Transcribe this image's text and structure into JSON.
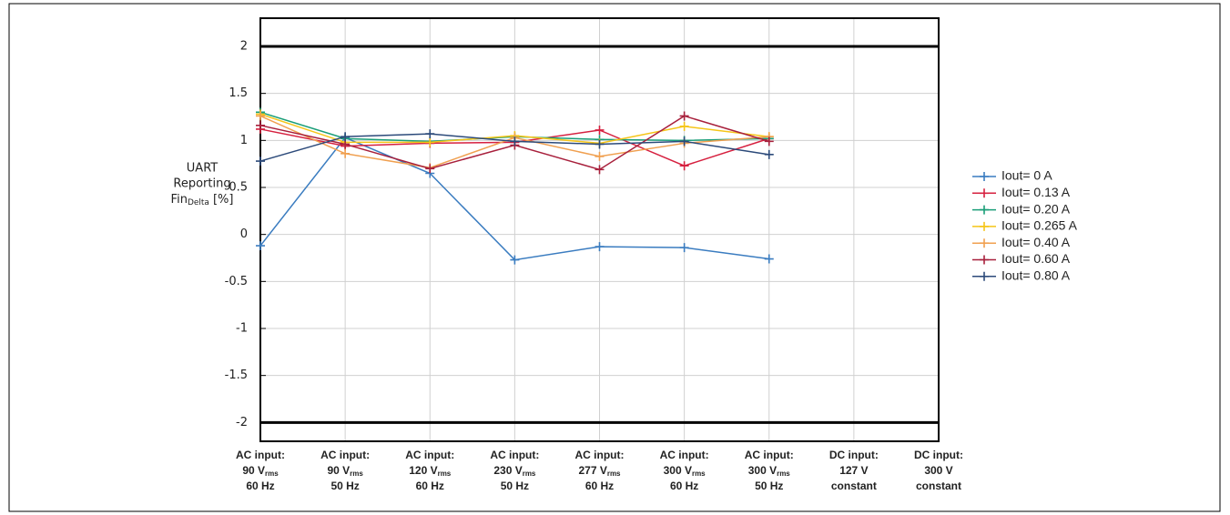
{
  "chart_data": {
    "type": "line",
    "ylabel": {
      "lines": [
        "UART",
        "Reporting"
      ],
      "base": "Fin",
      "subscript": "Delta",
      "suffix": "[%]"
    },
    "categories": [
      {
        "lines": [
          "AC input:",
          "90 V",
          "60 Hz"
        ],
        "subscript": "rms"
      },
      {
        "lines": [
          "AC input:",
          "90 V",
          "50 Hz"
        ],
        "subscript": "rms"
      },
      {
        "lines": [
          "AC input:",
          "120 V",
          "60 Hz"
        ],
        "subscript": "rms"
      },
      {
        "lines": [
          "AC input:",
          "230 V",
          "50 Hz"
        ],
        "subscript": "rms"
      },
      {
        "lines": [
          "AC input:",
          "277 V",
          "60 Hz"
        ],
        "subscript": "rms"
      },
      {
        "lines": [
          "AC input:",
          "300 V",
          "60 Hz"
        ],
        "subscript": "rms"
      },
      {
        "lines": [
          "AC input:",
          "300 V",
          "50 Hz"
        ],
        "subscript": "rms"
      },
      {
        "lines": [
          "DC input:",
          "127 V",
          "constant"
        ]
      },
      {
        "lines": [
          "DC input:",
          "300 V",
          "constant"
        ]
      }
    ],
    "series": [
      {
        "name": "Iout= 0 A",
        "color": "#3a7cc0",
        "values": [
          -0.12,
          1.03,
          0.65,
          -0.27,
          -0.13,
          -0.14,
          -0.26,
          null,
          null
        ]
      },
      {
        "name": "Iout= 0.13 A",
        "color": "#d6203f",
        "values": [
          1.12,
          0.94,
          0.97,
          0.98,
          1.11,
          0.73,
          1.02,
          null,
          null
        ]
      },
      {
        "name": "Iout= 0.20 A",
        "color": "#1a9e78",
        "values": [
          1.3,
          1.02,
          0.99,
          1.04,
          1.01,
          1.0,
          1.02,
          null,
          null
        ]
      },
      {
        "name": "Iout= 0.265 A",
        "color": "#f5c518",
        "values": [
          1.28,
          0.98,
          0.98,
          1.05,
          0.97,
          1.15,
          1.04,
          null,
          null
        ]
      },
      {
        "name": "Iout= 0.40 A",
        "color": "#f0a050",
        "values": [
          1.26,
          0.86,
          0.71,
          1.03,
          0.83,
          0.97,
          1.04,
          null,
          null
        ]
      },
      {
        "name": "Iout= 0.60 A",
        "color": "#a8203c",
        "values": [
          1.16,
          0.96,
          0.7,
          0.95,
          0.69,
          1.26,
          0.99,
          null,
          null
        ]
      },
      {
        "name": "Iout= 0.80 A",
        "color": "#2c4a7a",
        "values": [
          0.78,
          1.04,
          1.07,
          0.99,
          0.96,
          0.99,
          0.85,
          null,
          null
        ]
      }
    ],
    "ylim": [
      -2.2,
      2.3
    ],
    "yticks": [
      2,
      1.5,
      1,
      0.5,
      0,
      -0.5,
      -1,
      -1.5,
      -2
    ],
    "limit_lines": [
      2,
      -2
    ],
    "grid": true,
    "legend": "right"
  }
}
